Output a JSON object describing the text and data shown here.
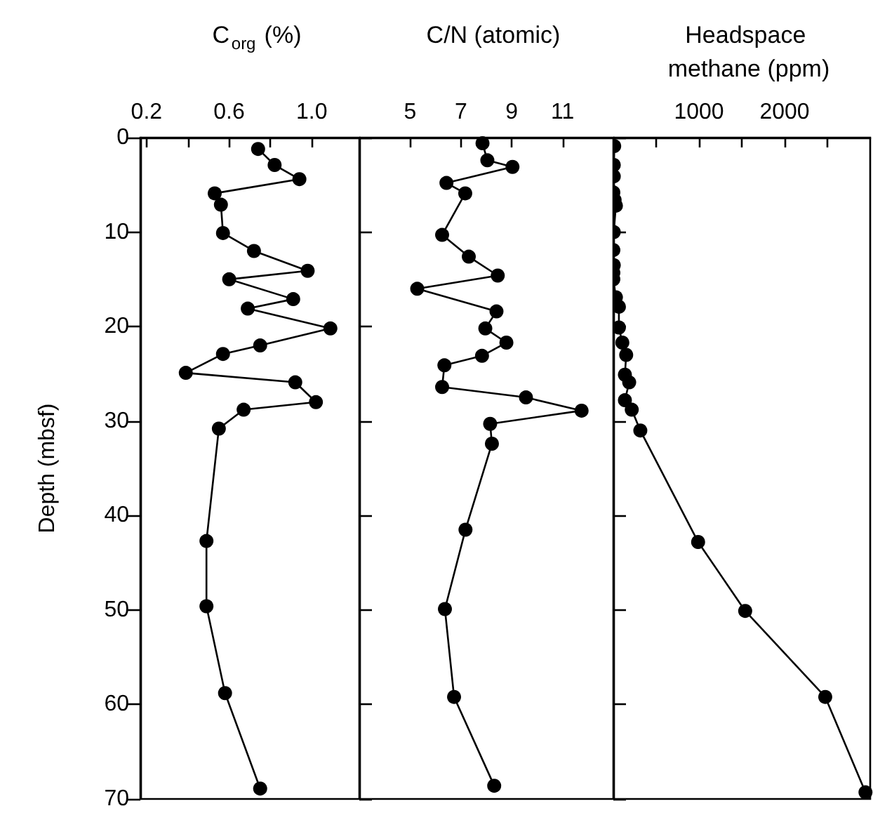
{
  "chart_data": [
    {
      "type": "line",
      "xlabel": "C$_{org}$ (%)",
      "ylabel": "Depth (mbsf)",
      "xlim": [
        0.17,
        1.23
      ],
      "xticks": [
        0.2,
        {
          "value": 0.4,
          "label": null
        },
        0.6,
        {
          "value": 0.8,
          "label": null
        },
        {
          "value": 1,
          "label": "1.0"
        }
      ],
      "ylim": [
        70,
        0
      ],
      "yticks": [
        0,
        10,
        20,
        30,
        40,
        50,
        60,
        70
      ],
      "marker": "circle",
      "line_style": "solid",
      "series": [
        {
          "color": "#000000",
          "x": [
            0.74,
            0.82,
            0.94,
            0.53,
            0.56,
            0.57,
            0.72,
            0.98,
            0.6,
            0.91,
            0.69,
            1.09,
            0.75,
            0.57,
            0.39,
            0.92,
            1.02,
            0.67,
            0.55,
            0.49,
            0.49,
            0.58,
            0.75
          ],
          "values": [
            1.2,
            2.9,
            4.4,
            5.9,
            7.1,
            10.1,
            12.0,
            14.1,
            15.0,
            17.1,
            18.1,
            20.2,
            22.0,
            22.9,
            24.9,
            25.9,
            28.0,
            28.8,
            30.8,
            42.7,
            49.6,
            58.8,
            68.9
          ]
        }
      ]
    },
    {
      "type": "line",
      "xlabel": "C/N (atomic)",
      "xlim": [
        3,
        13
      ],
      "xticks": [
        5,
        7,
        9,
        11
      ],
      "ylim": [
        70,
        0
      ],
      "yticks": [
        0,
        10,
        20,
        30,
        40,
        50,
        60,
        70
      ],
      "tick_labels": "x",
      "marker": "circle",
      "line_style": "solid",
      "series": [
        {
          "color": "#000000",
          "x": [
            7.85,
            8.04,
            9.03,
            6.43,
            7.17,
            6.26,
            7.31,
            8.45,
            5.28,
            8.4,
            7.96,
            8.79,
            7.83,
            6.35,
            6.26,
            9.56,
            11.75,
            8.15,
            8.22,
            7.18,
            6.37,
            6.73,
            8.31
          ],
          "values": [
            0.6,
            2.4,
            3.1,
            4.8,
            5.9,
            10.3,
            12.6,
            14.6,
            16.0,
            18.4,
            20.2,
            21.7,
            23.1,
            24.1,
            26.4,
            27.5,
            28.9,
            30.3,
            32.4,
            41.5,
            49.9,
            59.2,
            68.6
          ]
        }
      ]
    },
    {
      "type": "line",
      "xlabel": "Headspace methane (ppm)",
      "xlim": [
        0,
        3000
      ],
      "xticks": [
        {
          "value": 500,
          "label": null
        },
        1000,
        {
          "value": 1500,
          "label": null
        },
        2000,
        {
          "value": 2500,
          "label": null
        }
      ],
      "ylim": [
        70,
        0
      ],
      "yticks": [
        0,
        10,
        20,
        30,
        40,
        50,
        60,
        70
      ],
      "tick_labels": "x",
      "marker": "circle",
      "line_style": "solid",
      "series": [
        {
          "color": "#000000",
          "x": [
            10,
            5,
            5,
            0,
            15,
            30,
            5,
            0,
            5,
            0,
            0,
            30,
            65,
            65,
            105,
            150,
            135,
            185,
            135,
            215,
            315,
            990,
            1540,
            2475,
            2945
          ],
          "values": [
            0.9,
            2.9,
            4.1,
            5.8,
            6.6,
            7.2,
            10.0,
            11.9,
            13.5,
            14.3,
            15.0,
            16.9,
            17.9,
            20.1,
            21.7,
            23.0,
            25.1,
            25.9,
            27.8,
            28.8,
            31.0,
            42.8,
            50.1,
            59.2,
            69.3
          ]
        }
      ]
    }
  ]
}
